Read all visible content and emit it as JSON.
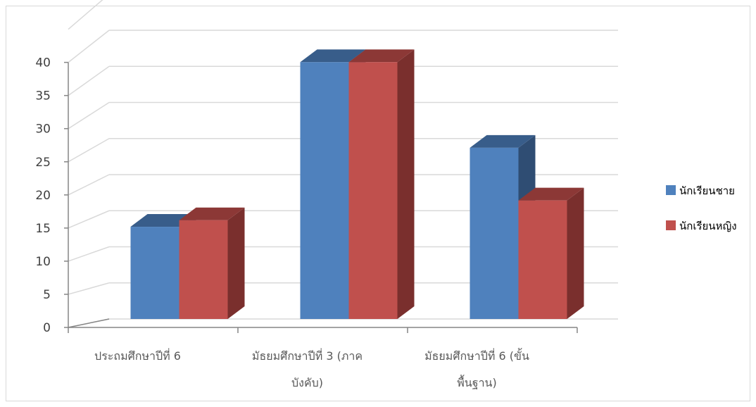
{
  "chart_data": {
    "type": "bar",
    "categories": [
      [
        "ประถมศึกษาปีที่ 6"
      ],
      [
        "มัธยมศึกษาปีที่ 3 (ภาค",
        "บังคับ)"
      ],
      [
        "มัธยมศึกษาปีที่ 6 (ขั้น",
        "พื้นฐาน)"
      ]
    ],
    "series": [
      {
        "name": "นักเรียนชาย",
        "values": [
          14,
          39,
          26
        ]
      },
      {
        "name": "นักเรียนหญิง",
        "values": [
          15,
          39,
          18
        ]
      }
    ],
    "ylim": [
      0,
      40
    ],
    "ytick_step": 5,
    "grid": true,
    "style": "3d-clustered-column",
    "legend_position": "right",
    "colors": {
      "series_front": [
        "#4F81BD",
        "#C0504D"
      ],
      "series_top": [
        "#385D8A",
        "#8C3836"
      ],
      "series_side": [
        "#2F4D73",
        "#7A2F2D"
      ],
      "grid": "#d9d9d9",
      "axis": "#868686"
    }
  }
}
